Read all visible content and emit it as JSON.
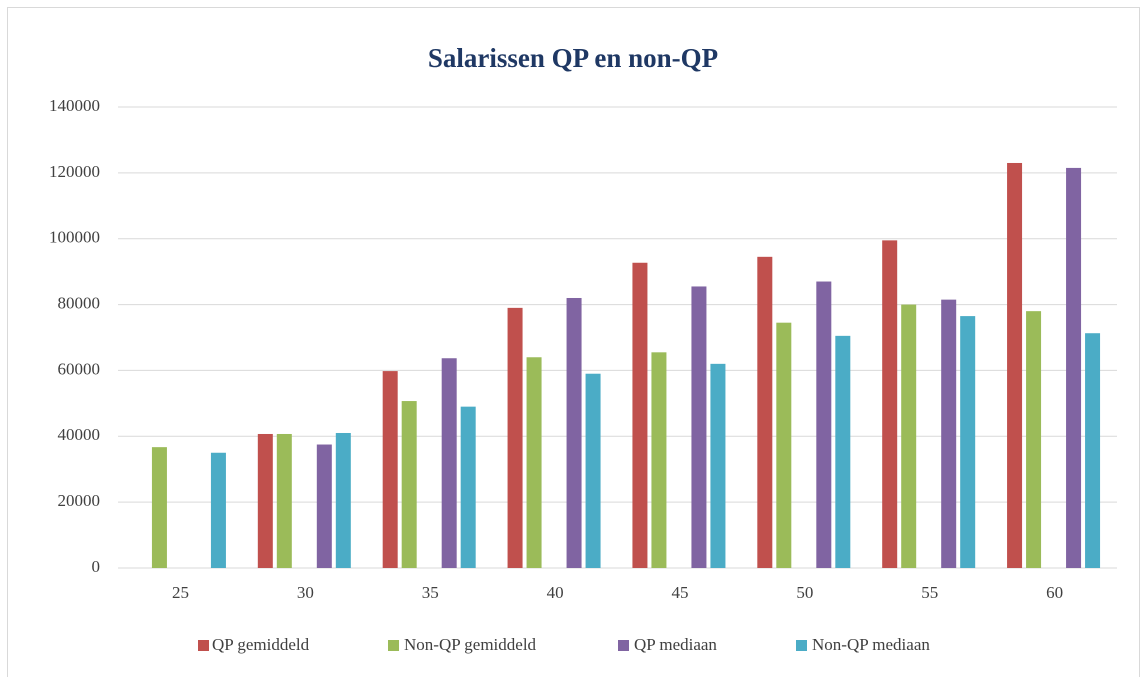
{
  "chart_data": {
    "type": "bar",
    "title": "Salarissen QP en non-QP",
    "categories": [
      "25",
      "30",
      "35",
      "40",
      "45",
      "50",
      "55",
      "60"
    ],
    "series": [
      {
        "name": "QP gemiddeld",
        "color": "#c0504d",
        "values": [
          null,
          40700,
          59800,
          79000,
          92700,
          94500,
          99500,
          123000
        ]
      },
      {
        "name": "Non-QP gemiddeld",
        "color": "#9bbb59",
        "values": [
          36700,
          40700,
          50700,
          64000,
          65500,
          74500,
          80000,
          78000
        ]
      },
      {
        "name": "QP mediaan",
        "color": "#8064a2",
        "values": [
          null,
          37500,
          63700,
          82000,
          85500,
          87000,
          81500,
          121500
        ]
      },
      {
        "name": "Non-QP mediaan",
        "color": "#4bacc6",
        "values": [
          35000,
          41000,
          49000,
          59000,
          62000,
          70500,
          76500,
          71300
        ]
      }
    ],
    "ylim": [
      0,
      140000
    ],
    "yticks": [
      0,
      20000,
      40000,
      60000,
      80000,
      100000,
      120000,
      140000
    ],
    "grid": true,
    "legend": "bottom"
  }
}
